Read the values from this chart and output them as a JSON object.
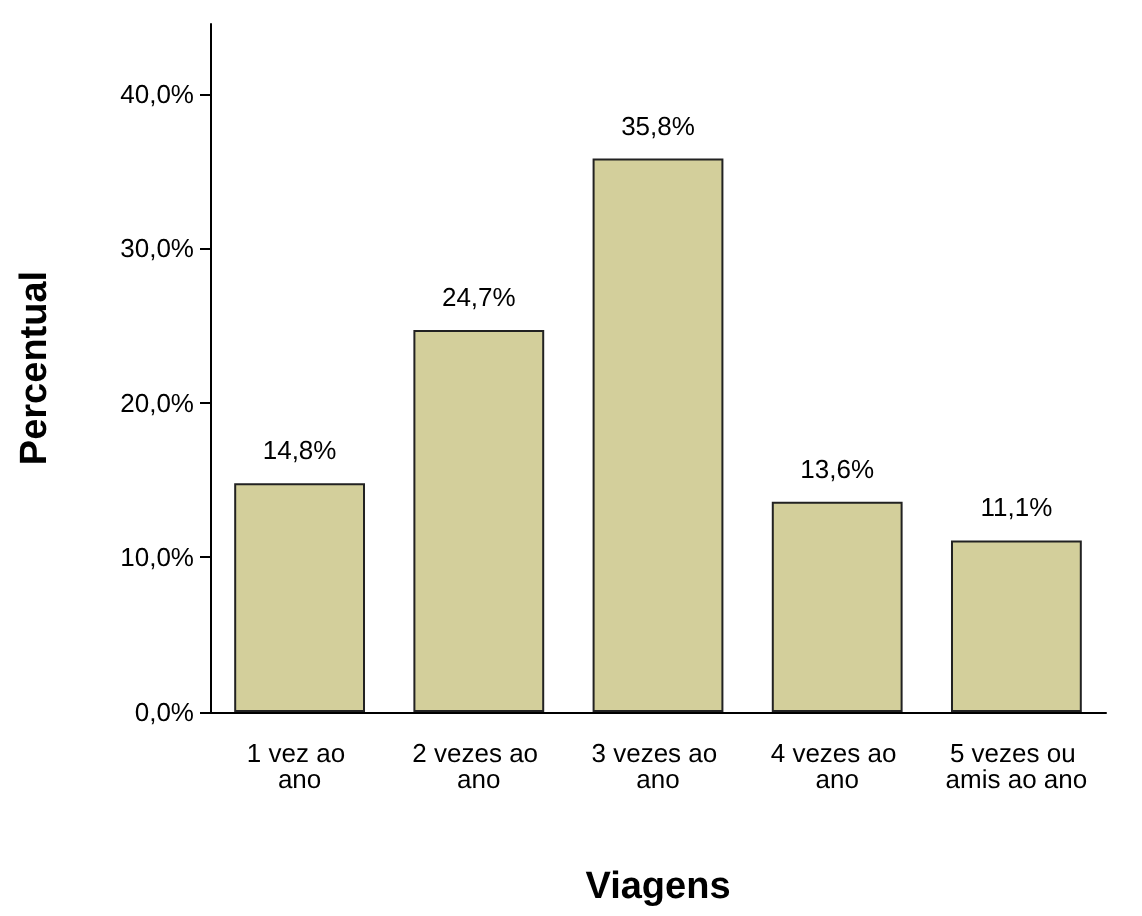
{
  "chart_data": {
    "type": "bar",
    "xlabel": "Viagens",
    "ylabel": "Percentual",
    "categories": [
      "1 vez ao ano",
      "2 vezes ao ano",
      "3 vezes ao ano",
      "4 vezes ao ano",
      "5 vezes ou amis ao ano"
    ],
    "values": [
      14.8,
      24.7,
      35.8,
      13.6,
      11.1
    ],
    "value_labels": [
      "14,8%",
      "24,7%",
      "35,8%",
      "13,6%",
      "11,1%"
    ],
    "color": "#d3cf9b",
    "ylim": [
      0,
      44.5
    ],
    "yticks": [
      {
        "value": 0,
        "label": "0,0%"
      },
      {
        "value": 10,
        "label": "10,0%"
      },
      {
        "value": 20,
        "label": "20,0%"
      },
      {
        "value": 30,
        "label": "30,0%"
      },
      {
        "value": 40,
        "label": "40,0%"
      }
    ],
    "grid": false
  }
}
